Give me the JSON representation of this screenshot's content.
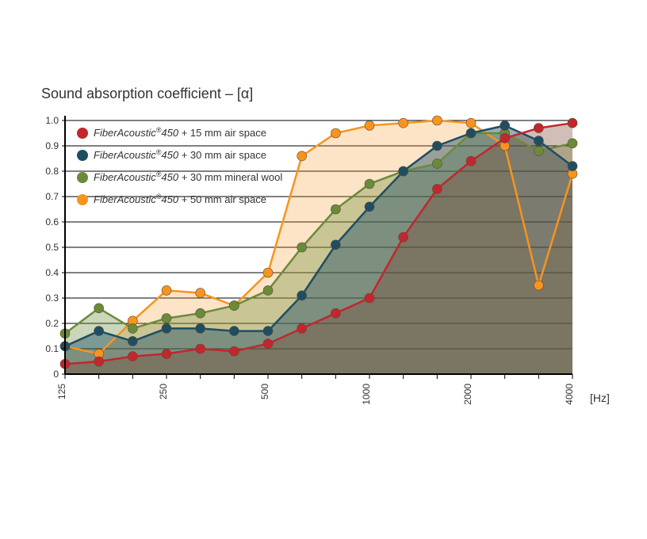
{
  "chart": {
    "type": "line-area",
    "title": "Sound absorption coefficient – [α]",
    "background_color": "#ffffff",
    "grid_color": "#000000",
    "axis_color": "#000000",
    "title_fontsize": 18,
    "label_fontsize": 12,
    "x_unit_label": "[Hz]",
    "y": {
      "min": 0,
      "max": 1.0,
      "ticks": [
        0,
        0.1,
        0.2,
        0.3,
        0.4,
        0.5,
        0.6,
        0.7,
        0.8,
        0.9,
        1.0
      ],
      "tick_labels": [
        "0",
        "0.1",
        "0.2",
        "0.3",
        "0.4",
        "0.5",
        "0.6",
        "0.7",
        "0.8",
        "0.9",
        "1.0"
      ]
    },
    "x": {
      "scale": "log",
      "positions": [
        125,
        160,
        200,
        250,
        315,
        400,
        500,
        630,
        800,
        1000,
        1250,
        1600,
        2000,
        2500,
        3150,
        4000
      ],
      "tick_values": [
        125,
        250,
        500,
        1000,
        2000,
        4000
      ],
      "tick_labels": [
        "125",
        "250",
        "500",
        "1000",
        "2000",
        "4000"
      ]
    },
    "legend": {
      "prefix_italic": "FiberAcoustic",
      "reg_mark": "®",
      "mid": "450",
      "items": [
        {
          "suffix": "  + 15 mm air space",
          "color": "#c1272d"
        },
        {
          "suffix": "  + 30 mm air space",
          "color": "#1f4e63"
        },
        {
          "suffix": "  + 30 mm mineral wool",
          "color": "#6a8b3a"
        },
        {
          "suffix": "  + 50 mm air space",
          "color": "#f7941e"
        }
      ]
    },
    "series": [
      {
        "name": "50mm-air",
        "color": "#f7941e",
        "fill": "rgba(247,148,30,0.25)",
        "values": [
          0.11,
          0.08,
          0.21,
          0.33,
          0.32,
          0.27,
          0.4,
          0.86,
          0.95,
          0.98,
          0.99,
          1.0,
          0.99,
          0.9,
          0.35,
          0.79
        ]
      },
      {
        "name": "30mm-mineral-wool",
        "color": "#6a8b3a",
        "fill": "rgba(106,139,58,0.35)",
        "values": [
          0.16,
          0.26,
          0.18,
          0.22,
          0.24,
          0.27,
          0.33,
          0.5,
          0.65,
          0.75,
          0.8,
          0.83,
          0.95,
          0.95,
          0.88,
          0.91
        ]
      },
      {
        "name": "30mm-air",
        "color": "#1f4e63",
        "fill": "rgba(31,78,99,0.45)",
        "values": [
          0.11,
          0.17,
          0.13,
          0.18,
          0.18,
          0.17,
          0.17,
          0.31,
          0.51,
          0.66,
          0.8,
          0.9,
          0.95,
          0.98,
          0.92,
          0.82
        ]
      },
      {
        "name": "15mm-air",
        "color": "#c1272d",
        "fill": "rgba(120,70,50,0.35)",
        "values": [
          0.04,
          0.05,
          0.07,
          0.08,
          0.1,
          0.09,
          0.12,
          0.18,
          0.24,
          0.3,
          0.54,
          0.73,
          0.84,
          0.93,
          0.97,
          0.99
        ]
      }
    ],
    "marker_radius": 6,
    "line_width": 2.5
  }
}
